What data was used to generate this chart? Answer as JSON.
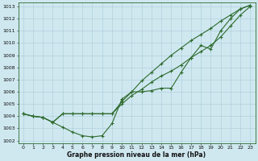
{
  "x": [
    0,
    1,
    2,
    3,
    4,
    5,
    6,
    7,
    8,
    9,
    10,
    11,
    12,
    13,
    14,
    15,
    16,
    17,
    18,
    19,
    20,
    21,
    22,
    23
  ],
  "line1_low": [
    1004.2,
    1004.0,
    1003.9,
    1003.5,
    1003.1,
    1002.7,
    1002.4,
    1002.3,
    1002.4,
    1003.4,
    1005.4,
    1006.0,
    1006.0,
    1006.1,
    1006.3,
    1006.3,
    1007.6,
    1008.8,
    1009.8,
    1009.5,
    1011.0,
    1012.0,
    1012.8,
    1013.1
  ],
  "line2_mid": [
    1004.2,
    1004.0,
    1003.9,
    1003.5,
    1004.2,
    1004.2,
    1004.2,
    1004.2,
    1004.2,
    1004.2,
    1005.0,
    1005.7,
    1006.2,
    1006.8,
    1007.3,
    1007.7,
    1008.2,
    1008.8,
    1009.3,
    1009.8,
    1010.5,
    1011.4,
    1012.3,
    1013.0
  ],
  "line3_high": [
    1004.2,
    1004.0,
    1003.9,
    1003.5,
    1004.2,
    1004.2,
    1004.2,
    1004.2,
    1004.2,
    1004.2,
    1005.2,
    1006.0,
    1006.9,
    1007.6,
    1008.3,
    1009.0,
    1009.6,
    1010.2,
    1010.7,
    1011.2,
    1011.8,
    1012.3,
    1012.8,
    1013.1
  ],
  "ylim_min": 1001.8,
  "ylim_max": 1013.3,
  "yticks": [
    1002,
    1003,
    1004,
    1005,
    1006,
    1007,
    1008,
    1009,
    1010,
    1011,
    1012,
    1013
  ],
  "xticks": [
    0,
    1,
    2,
    3,
    4,
    5,
    6,
    7,
    8,
    9,
    10,
    11,
    12,
    13,
    14,
    15,
    16,
    17,
    18,
    19,
    20,
    21,
    22,
    23
  ],
  "xlabel": "Graphe pression niveau de la mer (hPa)",
  "line_color": "#2d6a2d",
  "bg_color": "#cfe8f0",
  "grid_color": "#aacbd8",
  "marker": "+",
  "marker_size": 3.5,
  "linewidth": 0.8,
  "tick_fontsize": 4.5,
  "xlabel_fontsize": 5.5
}
